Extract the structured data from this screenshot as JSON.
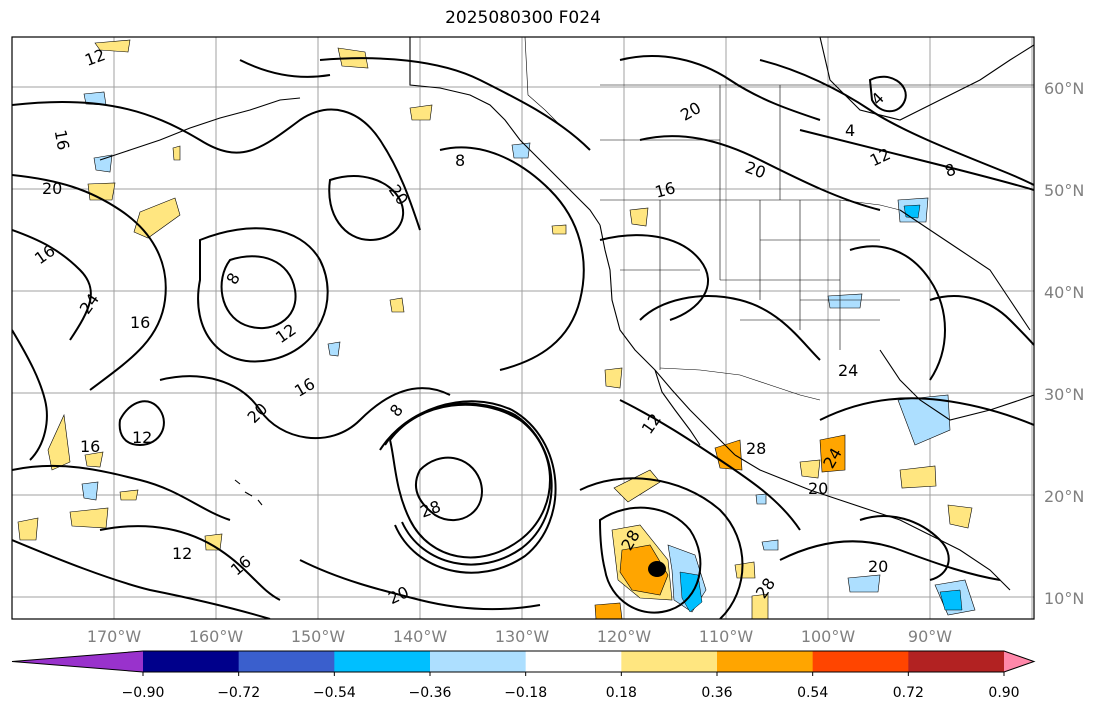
{
  "title": "2025080300 F024",
  "latitude_labels": [
    "60°N",
    "50°N",
    "40°N",
    "30°N",
    "20°N",
    "10°N"
  ],
  "longitude_labels": [
    "170°W",
    "160°W",
    "150°W",
    "140°W",
    "130°W",
    "120°W",
    "110°W",
    "100°W",
    "90°W"
  ],
  "colorbar": {
    "colors": [
      "#9932CC",
      "#00008B",
      "#3A5FCD",
      "#00BFFF",
      "#ADDFFF",
      "#FFFFFF",
      "#FFE680",
      "#FFA500",
      "#FF4500",
      "#B22222",
      "#FF88AA"
    ],
    "tick_labels": [
      "−0.90",
      "−0.72",
      "−0.54",
      "−0.36",
      "−0.18",
      "0.18",
      "0.36",
      "0.54",
      "0.72",
      "0.90"
    ]
  },
  "contour_labels": [
    "12",
    "16",
    "20",
    "16",
    "24",
    "8",
    "16",
    "12",
    "16",
    "20",
    "8",
    "20",
    "16",
    "12",
    "28",
    "12",
    "16",
    "20",
    "8",
    "20",
    "16",
    "4",
    "4",
    "12",
    "8",
    "20",
    "24",
    "12",
    "28",
    "24",
    "20",
    "28",
    "20",
    "28",
    "8"
  ]
}
